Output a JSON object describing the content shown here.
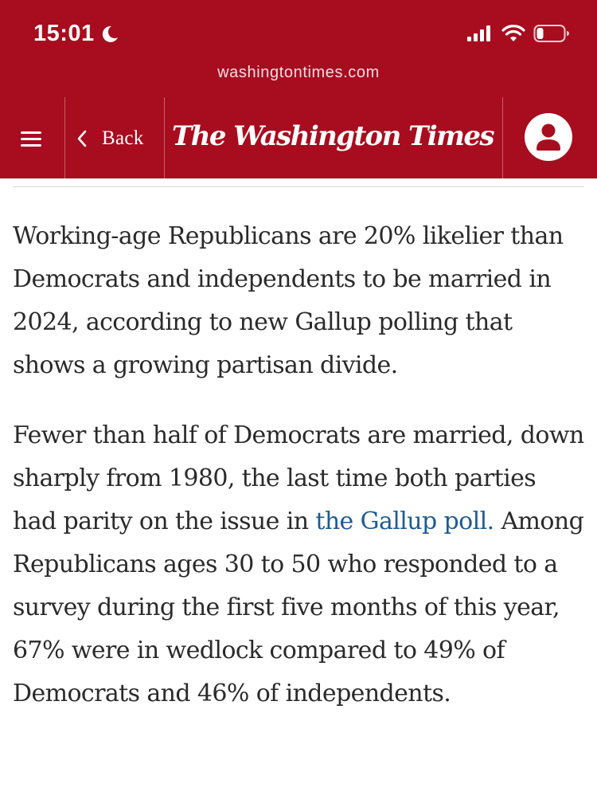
{
  "status_bar": {
    "time": "15:01",
    "time_icon": "moon-icon",
    "icons": [
      "cellular-signal-icon",
      "wifi-icon",
      "battery-icon"
    ]
  },
  "browser": {
    "url": "washingtontimes.com"
  },
  "navbar": {
    "menu_icon": "hamburger-menu-icon",
    "back_label": "Back",
    "masthead": "The Washington Times",
    "account_icon": "user-icon"
  },
  "colors": {
    "brand": "#a80c1f",
    "link": "#1f5b8f",
    "text": "#2a2a2a"
  },
  "article": {
    "p1": "Working-age Republicans are 20% likelier than Democrats and independents to be married in 2024, according to new Gallup polling that shows a growing partisan divide.",
    "p2_before": "Fewer than half of Democrats are married, down sharply from 1980, the last time both parties had parity on the issue in ",
    "p2_link": "the Gallup poll.",
    "p2_after": " Among Republicans ages 30 to 50 who responded to a survey during the first five months of this year, 67% were in wedlock compared to 49% of Democrats and 46% of independents."
  }
}
